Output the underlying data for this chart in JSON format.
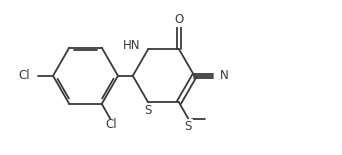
{
  "bg_color": "#ffffff",
  "line_color": "#3a3a3a",
  "line_width": 1.3,
  "font_size": 8.5,
  "figsize": [
    3.42,
    1.55
  ],
  "dpi": 100,
  "xlim": [
    0,
    10
  ],
  "ylim": [
    0,
    4.5
  ]
}
